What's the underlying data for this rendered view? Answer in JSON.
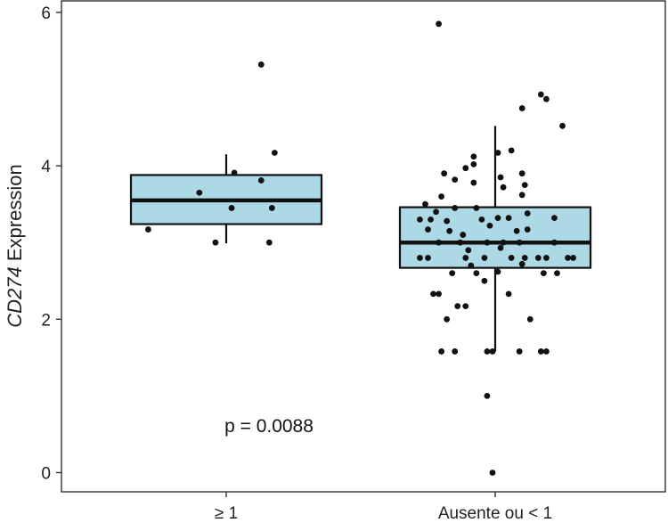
{
  "chart_data": {
    "type": "box",
    "ylabel_italic": "CD274",
    "ylabel_rest": " Expression",
    "xlabel": "",
    "ylim": [
      -0.25,
      6.15
    ],
    "yticks": [
      0,
      2,
      4,
      6
    ],
    "categories": [
      "≥ 1",
      "Ausente ou < 1"
    ],
    "annotation": "p = 0.0088",
    "box_fill": "#add8e6",
    "point_color": "#111111",
    "boxes": [
      {
        "category": "≥ 1",
        "q1": 3.24,
        "median": 3.55,
        "q3": 3.88,
        "whisker_low": 2.99,
        "whisker_high": 4.15
      },
      {
        "category": "Ausente ou < 1",
        "q1": 2.67,
        "median": 3.0,
        "q3": 3.46,
        "whisker_low": 1.58,
        "whisker_high": 4.52
      }
    ],
    "points": [
      {
        "category": "≥ 1",
        "jitter": 0.13,
        "y": 5.32
      },
      {
        "category": "≥ 1",
        "jitter": 0.03,
        "y": 3.91
      },
      {
        "category": "≥ 1",
        "jitter": 0.13,
        "y": 3.81
      },
      {
        "category": "≥ 1",
        "jitter": -0.1,
        "y": 3.65
      },
      {
        "category": "≥ 1",
        "jitter": 0.02,
        "y": 3.45
      },
      {
        "category": "≥ 1",
        "jitter": 0.17,
        "y": 3.45
      },
      {
        "category": "≥ 1",
        "jitter": 0.18,
        "y": 4.17
      },
      {
        "category": "≥ 1",
        "jitter": -0.29,
        "y": 3.17
      },
      {
        "category": "≥ 1",
        "jitter": -0.04,
        "y": 3.0
      },
      {
        "category": "≥ 1",
        "jitter": 0.16,
        "y": 3.0
      },
      {
        "category": "Ausente ou < 1",
        "jitter": -0.21,
        "y": 5.85
      },
      {
        "category": "Ausente ou < 1",
        "jitter": 0.17,
        "y": 4.93
      },
      {
        "category": "Ausente ou < 1",
        "jitter": 0.19,
        "y": 4.87
      },
      {
        "category": "Ausente ou < 1",
        "jitter": 0.1,
        "y": 4.75
      },
      {
        "category": "Ausente ou < 1",
        "jitter": 0.25,
        "y": 4.52
      },
      {
        "category": "Ausente ou < 1",
        "jitter": 0.06,
        "y": 4.2
      },
      {
        "category": "Ausente ou < 1",
        "jitter": -0.08,
        "y": 4.12
      },
      {
        "category": "Ausente ou < 1",
        "jitter": -0.08,
        "y": 4.02
      },
      {
        "category": "Ausente ou < 1",
        "jitter": 0.01,
        "y": 4.17
      },
      {
        "category": "Ausente ou < 1",
        "jitter": -0.11,
        "y": 3.97
      },
      {
        "category": "Ausente ou < 1",
        "jitter": -0.19,
        "y": 3.9
      },
      {
        "category": "Ausente ou < 1",
        "jitter": -0.15,
        "y": 3.82
      },
      {
        "category": "Ausente ou < 1",
        "jitter": -0.08,
        "y": 3.78
      },
      {
        "category": "Ausente ou < 1",
        "jitter": 0.02,
        "y": 3.85
      },
      {
        "category": "Ausente ou < 1",
        "jitter": 0.1,
        "y": 3.9
      },
      {
        "category": "Ausente ou < 1",
        "jitter": 0.11,
        "y": 3.75
      },
      {
        "category": "Ausente ou < 1",
        "jitter": -0.26,
        "y": 3.5
      },
      {
        "category": "Ausente ou < 1",
        "jitter": -0.2,
        "y": 3.6
      },
      {
        "category": "Ausente ou < 1",
        "jitter": 0.03,
        "y": 3.72
      },
      {
        "category": "Ausente ou < 1",
        "jitter": 0.1,
        "y": 3.62
      },
      {
        "category": "Ausente ou < 1",
        "jitter": -0.15,
        "y": 3.45
      },
      {
        "category": "Ausente ou < 1",
        "jitter": -0.07,
        "y": 3.45
      },
      {
        "category": "Ausente ou < 1",
        "jitter": 0.12,
        "y": 3.38
      },
      {
        "category": "Ausente ou < 1",
        "jitter": -0.22,
        "y": 3.4
      },
      {
        "category": "Ausente ou < 1",
        "jitter": -0.28,
        "y": 3.3
      },
      {
        "category": "Ausente ou < 1",
        "jitter": -0.24,
        "y": 3.3
      },
      {
        "category": "Ausente ou < 1",
        "jitter": -0.18,
        "y": 3.28
      },
      {
        "category": "Ausente ou < 1",
        "jitter": -0.05,
        "y": 3.3
      },
      {
        "category": "Ausente ou < 1",
        "jitter": 0.01,
        "y": 3.32
      },
      {
        "category": "Ausente ou < 1",
        "jitter": 0.05,
        "y": 3.32
      },
      {
        "category": "Ausente ou < 1",
        "jitter": 0.22,
        "y": 3.32
      },
      {
        "category": "Ausente ou < 1",
        "jitter": -0.02,
        "y": 3.22
      },
      {
        "category": "Ausente ou < 1",
        "jitter": -0.25,
        "y": 3.17
      },
      {
        "category": "Ausente ou < 1",
        "jitter": -0.17,
        "y": 3.15
      },
      {
        "category": "Ausente ou < 1",
        "jitter": -0.12,
        "y": 3.1
      },
      {
        "category": "Ausente ou < 1",
        "jitter": 0.08,
        "y": 3.15
      },
      {
        "category": "Ausente ou < 1",
        "jitter": 0.12,
        "y": 3.17
      },
      {
        "category": "Ausente ou < 1",
        "jitter": -0.21,
        "y": 3.0
      },
      {
        "category": "Ausente ou < 1",
        "jitter": -0.13,
        "y": 3.0
      },
      {
        "category": "Ausente ou < 1",
        "jitter": -0.03,
        "y": 3.0
      },
      {
        "category": "Ausente ou < 1",
        "jitter": 0.03,
        "y": 3.0
      },
      {
        "category": "Ausente ou < 1",
        "jitter": 0.09,
        "y": 3.0
      },
      {
        "category": "Ausente ou < 1",
        "jitter": 0.22,
        "y": 3.0
      },
      {
        "category": "Ausente ou < 1",
        "jitter": -0.1,
        "y": 2.9
      },
      {
        "category": "Ausente ou < 1",
        "jitter": 0.02,
        "y": 2.93
      },
      {
        "category": "Ausente ou < 1",
        "jitter": -0.28,
        "y": 2.8
      },
      {
        "category": "Ausente ou < 1",
        "jitter": -0.25,
        "y": 2.8
      },
      {
        "category": "Ausente ou < 1",
        "jitter": -0.11,
        "y": 2.8
      },
      {
        "category": "Ausente ou < 1",
        "jitter": -0.04,
        "y": 2.8
      },
      {
        "category": "Ausente ou < 1",
        "jitter": 0.06,
        "y": 2.8
      },
      {
        "category": "Ausente ou < 1",
        "jitter": 0.11,
        "y": 2.8
      },
      {
        "category": "Ausente ou < 1",
        "jitter": 0.16,
        "y": 2.8
      },
      {
        "category": "Ausente ou < 1",
        "jitter": 0.19,
        "y": 2.8
      },
      {
        "category": "Ausente ou < 1",
        "jitter": 0.27,
        "y": 2.8
      },
      {
        "category": "Ausente ou < 1",
        "jitter": 0.29,
        "y": 2.8
      },
      {
        "category": "Ausente ou < 1",
        "jitter": -0.09,
        "y": 2.7
      },
      {
        "category": "Ausente ou < 1",
        "jitter": 0.1,
        "y": 2.72
      },
      {
        "category": "Ausente ou < 1",
        "jitter": -0.16,
        "y": 2.6
      },
      {
        "category": "Ausente ou < 1",
        "jitter": -0.07,
        "y": 2.6
      },
      {
        "category": "Ausente ou < 1",
        "jitter": 0.01,
        "y": 2.62
      },
      {
        "category": "Ausente ou < 1",
        "jitter": 0.18,
        "y": 2.6
      },
      {
        "category": "Ausente ou < 1",
        "jitter": 0.23,
        "y": 2.6
      },
      {
        "category": "Ausente ou < 1",
        "jitter": -0.04,
        "y": 2.5
      },
      {
        "category": "Ausente ou < 1",
        "jitter": -0.23,
        "y": 2.33
      },
      {
        "category": "Ausente ou < 1",
        "jitter": -0.21,
        "y": 2.33
      },
      {
        "category": "Ausente ou < 1",
        "jitter": 0.05,
        "y": 2.33
      },
      {
        "category": "Ausente ou < 1",
        "jitter": -0.14,
        "y": 2.17
      },
      {
        "category": "Ausente ou < 1",
        "jitter": -0.11,
        "y": 2.17
      },
      {
        "category": "Ausente ou < 1",
        "jitter": -0.18,
        "y": 2.0
      },
      {
        "category": "Ausente ou < 1",
        "jitter": 0.13,
        "y": 2.0
      },
      {
        "category": "Ausente ou < 1",
        "jitter": -0.2,
        "y": 1.58
      },
      {
        "category": "Ausente ou < 1",
        "jitter": -0.15,
        "y": 1.58
      },
      {
        "category": "Ausente ou < 1",
        "jitter": -0.03,
        "y": 1.58
      },
      {
        "category": "Ausente ou < 1",
        "jitter": -0.01,
        "y": 1.58
      },
      {
        "category": "Ausente ou < 1",
        "jitter": 0.09,
        "y": 1.58
      },
      {
        "category": "Ausente ou < 1",
        "jitter": 0.17,
        "y": 1.58
      },
      {
        "category": "Ausente ou < 1",
        "jitter": 0.19,
        "y": 1.58
      },
      {
        "category": "Ausente ou < 1",
        "jitter": -0.03,
        "y": 1.0
      },
      {
        "category": "Ausente ou < 1",
        "jitter": -0.01,
        "y": 0.0
      }
    ]
  }
}
